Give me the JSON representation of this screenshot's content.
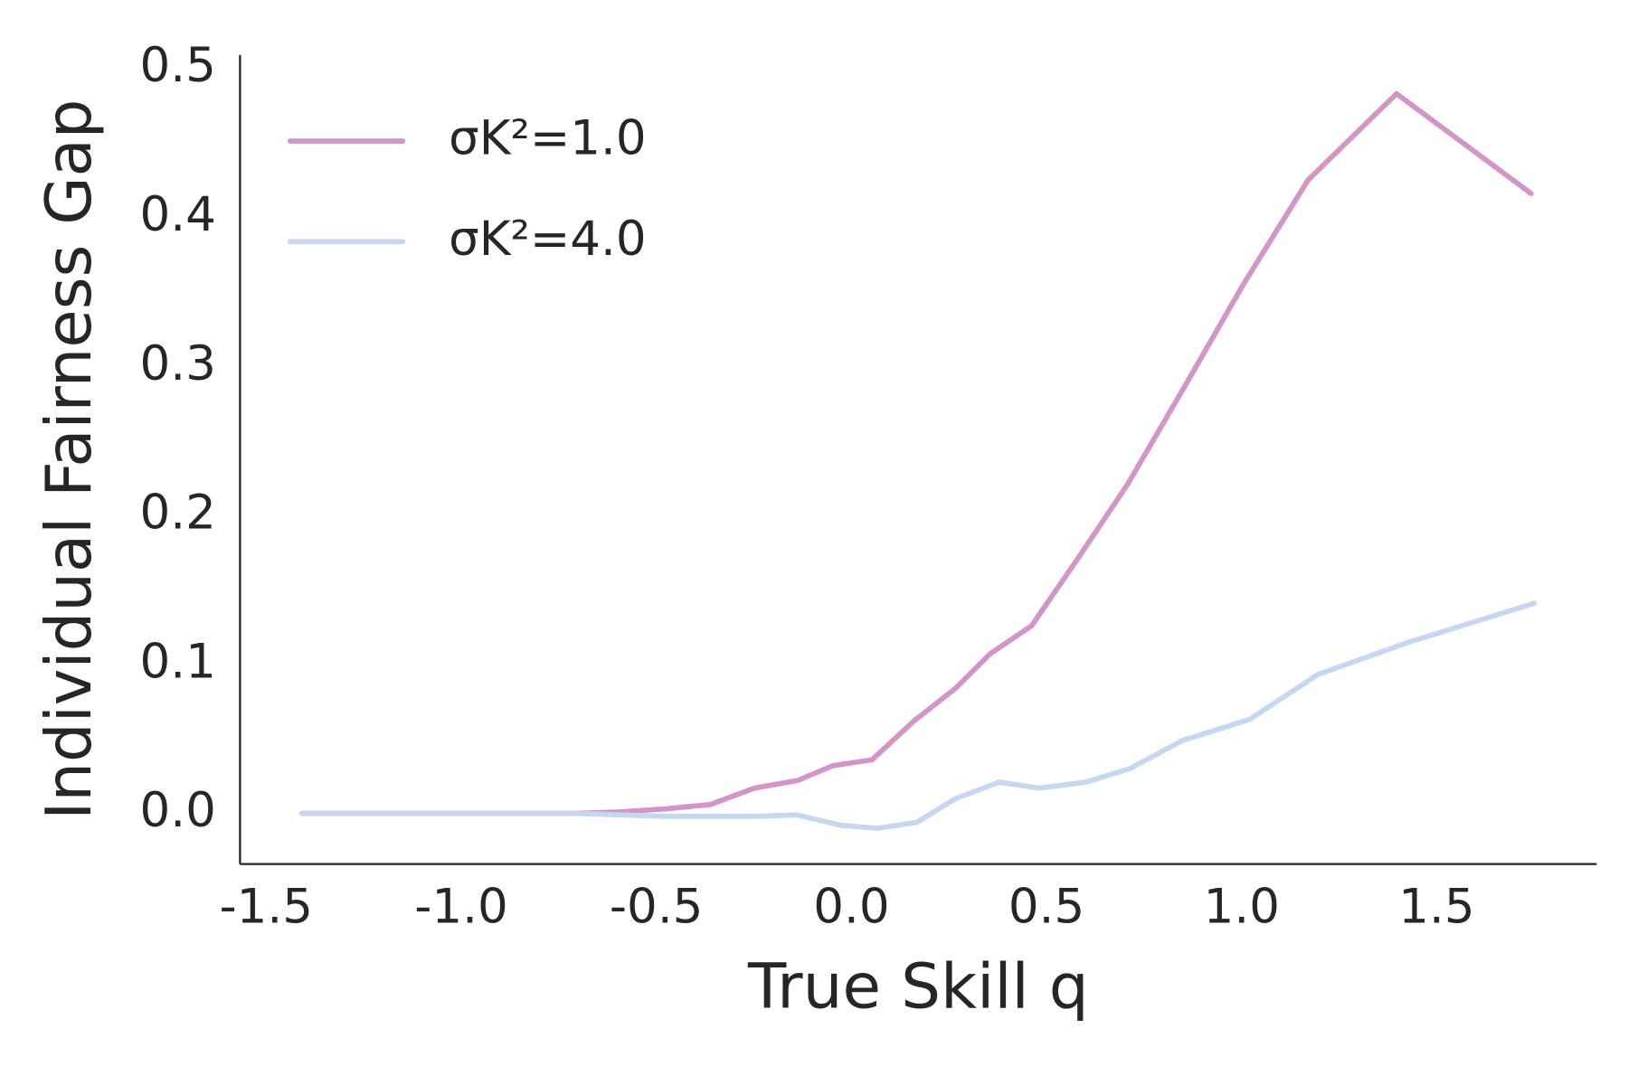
{
  "chart_data": {
    "type": "line",
    "xlabel": "True Skill q",
    "ylabel": "Individual Fairness Gap",
    "xlim": [
      -1.567,
      1.91
    ],
    "ylim": [
      -0.034,
      0.509
    ],
    "xticks": [
      -1.5,
      {
        "value": -1.0,
        "label": "-1.0"
      },
      -0.5,
      {
        "value": 0.0,
        "label": "0.0"
      },
      0.5,
      {
        "value": 1.0,
        "label": "1.0"
      },
      1.5
    ],
    "yticks": [
      {
        "value": 0.0,
        "label": "0.0"
      },
      0.1,
      0.2,
      0.3,
      0.4,
      0.5
    ],
    "grid": false,
    "legend": "upper left",
    "series": [
      {
        "name": "σK²=1.0",
        "color": "#d494c8",
        "x": [
          -1.408,
          -0.713,
          -0.593,
          -0.478,
          -0.361,
          -0.248,
          -0.139,
          -0.048,
          0.053,
          0.16,
          0.267,
          0.355,
          0.462,
          0.58,
          0.708,
          0.855,
          1.002,
          1.17,
          1.397,
          1.742
        ],
        "values": [
          0,
          0,
          0.001,
          0.003,
          0.006,
          0.017,
          0.022,
          0.032,
          0.036,
          0.062,
          0.084,
          0.107,
          0.126,
          0.171,
          0.221,
          0.287,
          0.354,
          0.425,
          0.483,
          0.416
        ]
      },
      {
        "name": "σK²=4.0",
        "color": "#c5d8f0",
        "x": [
          -1.408,
          -0.713,
          -0.593,
          -0.478,
          -0.361,
          -0.248,
          -0.139,
          -0.027,
          0.067,
          0.168,
          0.267,
          0.379,
          0.481,
          0.601,
          0.713,
          0.849,
          1.02,
          1.194,
          1.429,
          1.75
        ],
        "values": [
          0,
          0,
          -0.001,
          -0.002,
          -0.002,
          -0.002,
          -0.001,
          -0.008,
          -0.01,
          -0.006,
          0.01,
          0.021,
          0.017,
          0.021,
          0.03,
          0.049,
          0.063,
          0.093,
          0.115,
          0.141
        ]
      }
    ]
  }
}
